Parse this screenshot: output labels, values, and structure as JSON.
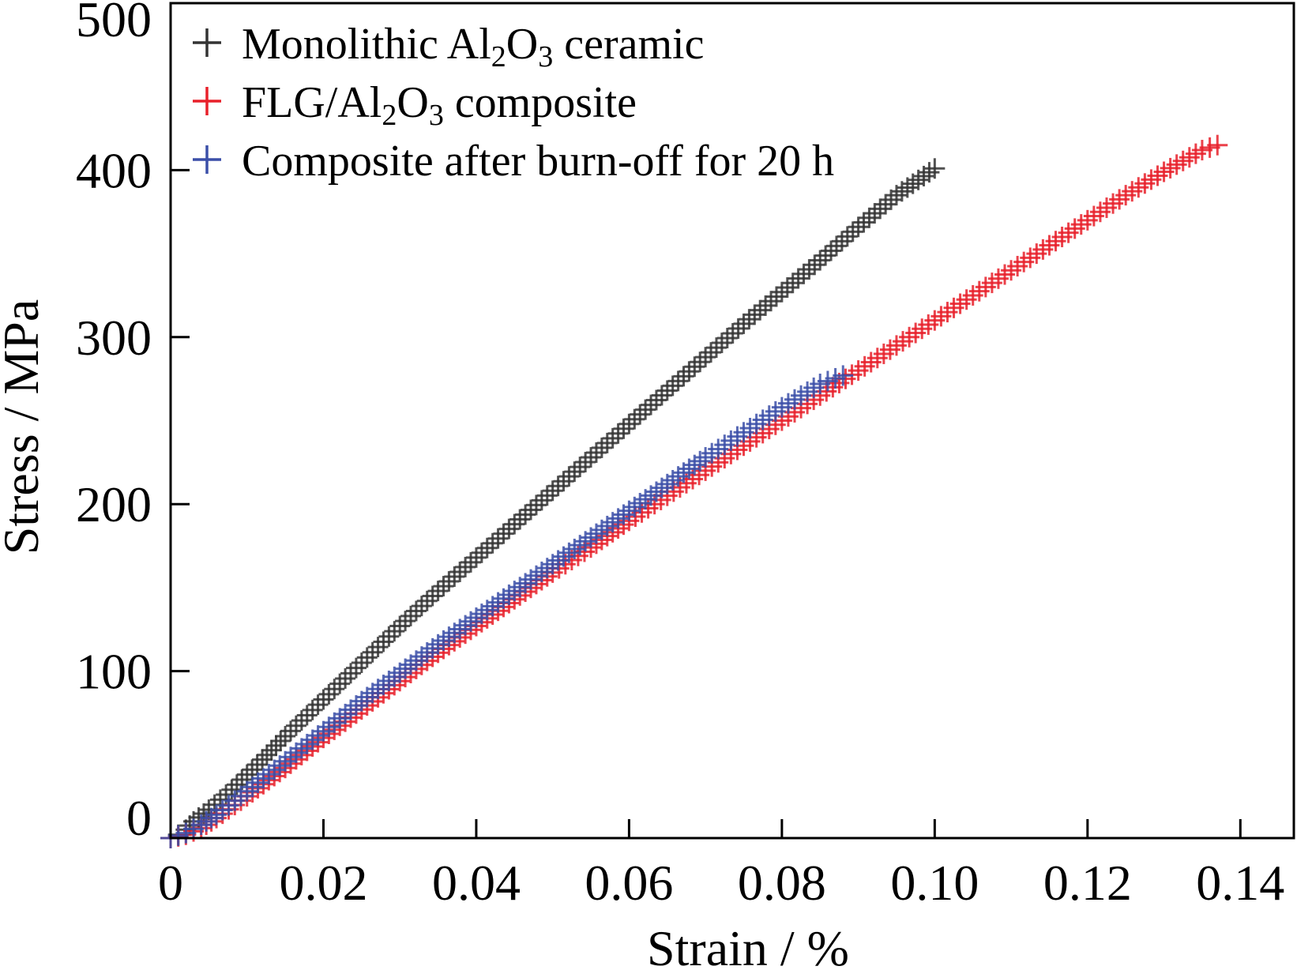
{
  "chart_data": {
    "type": "scatter",
    "xlabel": "Strain / %",
    "ylabel": "Stress / MPa",
    "xlim": [
      0,
      0.147
    ],
    "ylim": [
      0,
      500
    ],
    "x_ticks": [
      0,
      0.02,
      0.04,
      0.06,
      0.08,
      0.1,
      0.12,
      0.14
    ],
    "x_tick_labels": [
      "0",
      "0.02",
      "0.04",
      "0.06",
      "0.08",
      "0.10",
      "0.12",
      "0.14"
    ],
    "y_ticks": [
      0,
      100,
      200,
      300,
      400,
      500
    ],
    "y_tick_labels": [
      "0",
      "100",
      "200",
      "300",
      "400",
      "500"
    ],
    "grid": false,
    "legend_position": "top-left",
    "marker": "plus",
    "series": [
      {
        "name": "Monolithic Al2O3 ceramic",
        "legend_parts": [
          {
            "text": "Monolithic Al",
            "sub": false
          },
          {
            "text": "2",
            "sub": true
          },
          {
            "text": "O",
            "sub": false
          },
          {
            "text": "3",
            "sub": true
          },
          {
            "text": " ceramic",
            "sub": false
          }
        ],
        "color": "#333333",
        "x": [
          0,
          0.001,
          0.002,
          0.003,
          0.005,
          0.008,
          0.01,
          0.012,
          0.015,
          0.02,
          0.025,
          0.03,
          0.035,
          0.04,
          0.045,
          0.05,
          0.055,
          0.06,
          0.065,
          0.07,
          0.075,
          0.08,
          0.085,
          0.09,
          0.095,
          0.1
        ],
        "y": [
          0,
          2,
          5,
          10,
          17,
          29,
          38,
          47,
          61,
          83,
          105,
          127,
          148,
          168,
          188,
          208,
          228,
          248,
          268,
          288,
          308,
          327,
          346,
          366,
          385,
          401
        ]
      },
      {
        "name": "FLG/Al2O3 composite",
        "legend_parts": [
          {
            "text": "FLG/Al",
            "sub": false
          },
          {
            "text": "2",
            "sub": true
          },
          {
            "text": "O",
            "sub": false
          },
          {
            "text": "3",
            "sub": true
          },
          {
            "text": " composite",
            "sub": false
          }
        ],
        "color": "#e8202a",
        "x": [
          0,
          0.002,
          0.004,
          0.006,
          0.01,
          0.015,
          0.02,
          0.025,
          0.03,
          0.035,
          0.04,
          0.045,
          0.05,
          0.055,
          0.06,
          0.065,
          0.07,
          0.075,
          0.08,
          0.085,
          0.09,
          0.095,
          0.1,
          0.105,
          0.11,
          0.115,
          0.12,
          0.125,
          0.13,
          0.135,
          0.137
        ],
        "y": [
          0,
          2,
          6,
          12,
          25,
          42,
          60,
          77,
          94,
          111,
          127,
          143,
          159,
          174,
          190,
          205,
          220,
          235,
          250,
          265,
          280,
          295,
          310,
          325,
          340,
          355,
          370,
          385,
          399,
          412,
          415
        ]
      },
      {
        "name": "Composite after burn-off for 20 h",
        "legend_parts": [
          {
            "text": "Composite after burn-off for 20 h",
            "sub": false
          }
        ],
        "color": "#3b4fa8",
        "x": [
          0,
          0.002,
          0.004,
          0.006,
          0.01,
          0.015,
          0.02,
          0.025,
          0.03,
          0.035,
          0.04,
          0.045,
          0.05,
          0.055,
          0.06,
          0.065,
          0.07,
          0.075,
          0.08,
          0.085,
          0.088
        ],
        "y": [
          0,
          3,
          8,
          14,
          28,
          46,
          64,
          82,
          99,
          116,
          132,
          148,
          164,
          180,
          196,
          212,
          228,
          243,
          258,
          272,
          277
        ]
      }
    ]
  }
}
